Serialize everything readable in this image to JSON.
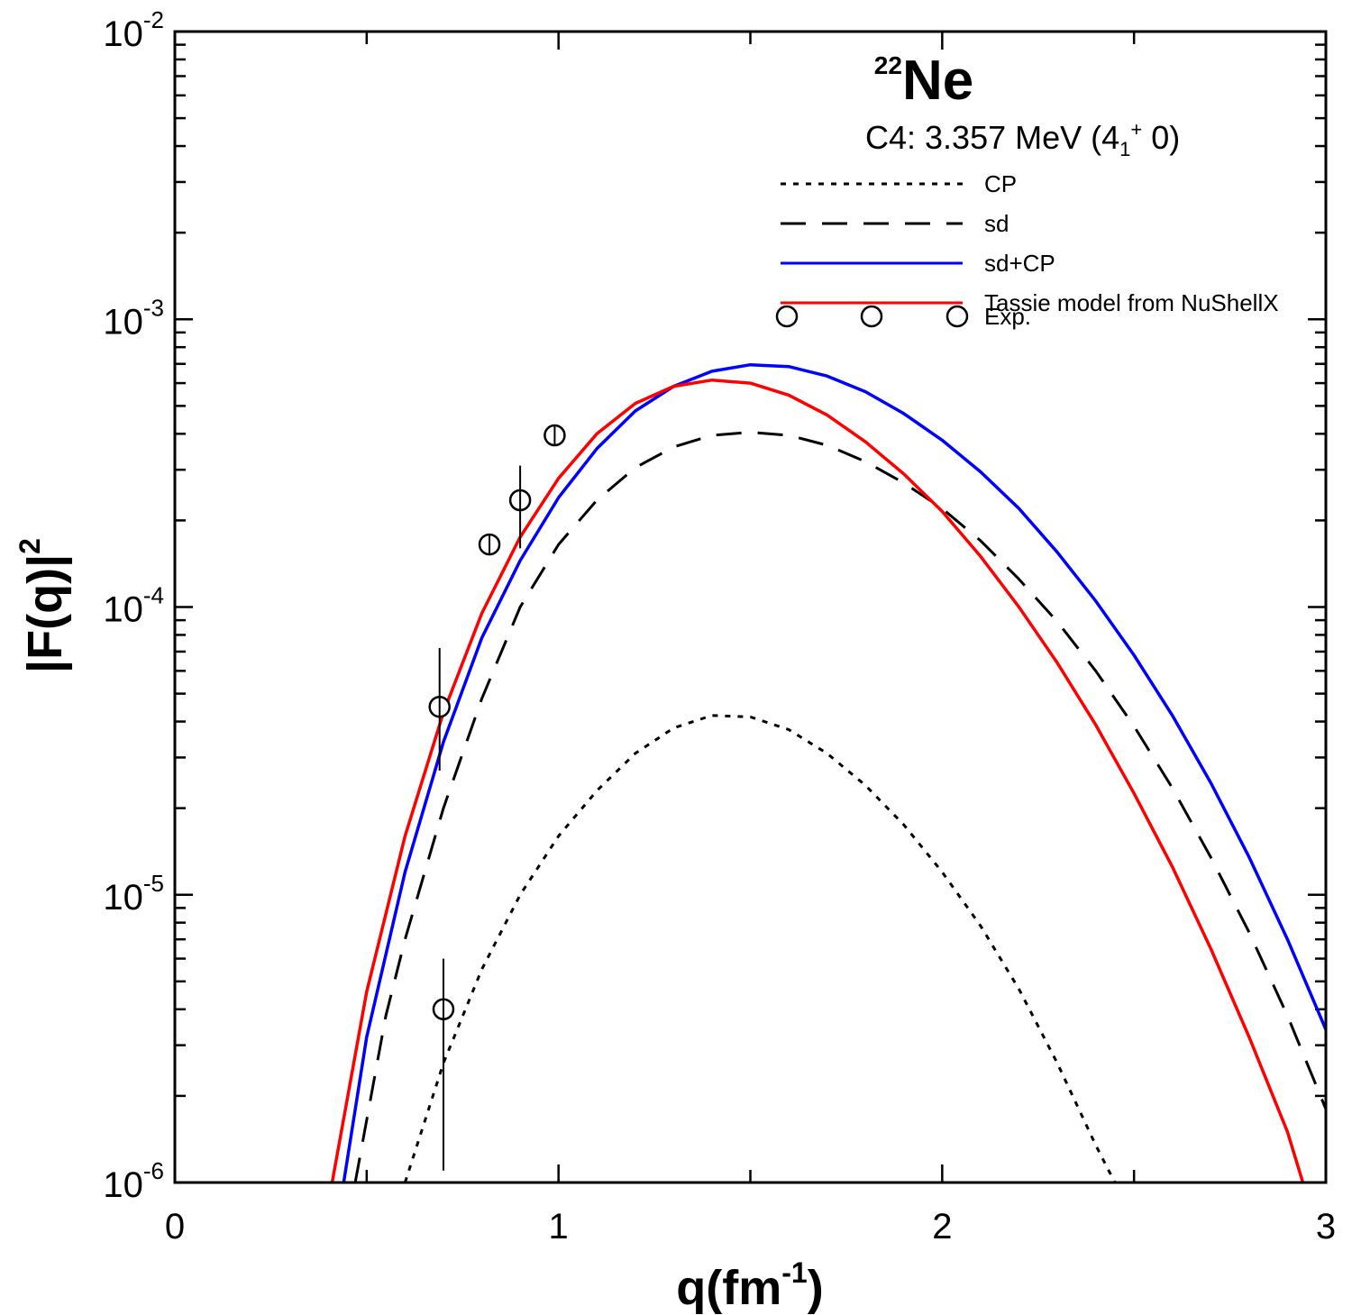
{
  "chart_data": {
    "type": "line",
    "title": {
      "mass_number": "22",
      "element": "Ne"
    },
    "subtitle": {
      "prefix": "C4:  3.357 MeV (4",
      "sub": "1",
      "sup": "+",
      "suffix": " 0)"
    },
    "xlabel": {
      "main": "q(fm",
      "sup": "-1",
      "close": ")"
    },
    "ylabel": {
      "main": "|F(q)|",
      "sup": "2"
    },
    "xlim": [
      0,
      3
    ],
    "ylim": [
      1e-06,
      0.01
    ],
    "yscale": "log",
    "x_ticks": [
      {
        "value": 0,
        "label": "0"
      },
      {
        "value": 1,
        "label": "1"
      },
      {
        "value": 2,
        "label": "2"
      },
      {
        "value": 3,
        "label": "3"
      }
    ],
    "y_ticks": [
      {
        "exp": -2,
        "base": "10",
        "sup": "-2"
      },
      {
        "exp": -3,
        "base": "10",
        "sup": "-3"
      },
      {
        "exp": -4,
        "base": "10",
        "sup": "-4"
      },
      {
        "exp": -5,
        "base": "10",
        "sup": "-5"
      },
      {
        "exp": -6,
        "base": "10",
        "sup": "-6"
      }
    ],
    "legend_position": "top-right",
    "series": [
      {
        "name": "CP",
        "style": "dotted",
        "color": "#000000",
        "points": [
          [
            0.6,
            1e-06
          ],
          [
            0.7,
            2.6e-06
          ],
          [
            0.8,
            5.5e-06
          ],
          [
            0.9,
            1e-05
          ],
          [
            1.0,
            1.6e-05
          ],
          [
            1.1,
            2.3e-05
          ],
          [
            1.2,
            3.1e-05
          ],
          [
            1.3,
            3.8e-05
          ],
          [
            1.4,
            4.2e-05
          ],
          [
            1.5,
            4.15e-05
          ],
          [
            1.6,
            3.75e-05
          ],
          [
            1.7,
            3.1e-05
          ],
          [
            1.8,
            2.4e-05
          ],
          [
            1.9,
            1.75e-05
          ],
          [
            2.0,
            1.2e-05
          ],
          [
            2.1,
            7.8e-06
          ],
          [
            2.2,
            4.7e-06
          ],
          [
            2.3,
            2.6e-06
          ],
          [
            2.4,
            1.35e-06
          ],
          [
            2.45,
            1e-06
          ]
        ]
      },
      {
        "name": "sd",
        "style": "dashed",
        "color": "#000000",
        "points": [
          [
            0.47,
            1e-06
          ],
          [
            0.55,
            3.8e-06
          ],
          [
            0.6,
            7e-06
          ],
          [
            0.7,
            2e-05
          ],
          [
            0.8,
            4.8e-05
          ],
          [
            0.9,
            0.0001
          ],
          [
            1.0,
            0.000165
          ],
          [
            1.1,
            0.000235
          ],
          [
            1.2,
            0.000305
          ],
          [
            1.3,
            0.00036
          ],
          [
            1.4,
            0.000395
          ],
          [
            1.5,
            0.000405
          ],
          [
            1.6,
            0.000395
          ],
          [
            1.7,
            0.000365
          ],
          [
            1.8,
            0.00032
          ],
          [
            1.9,
            0.00027
          ],
          [
            2.0,
            0.00022
          ],
          [
            2.1,
            0.00017
          ],
          [
            2.2,
            0.000125
          ],
          [
            2.3,
            8.9e-05
          ],
          [
            2.4,
            6e-05
          ],
          [
            2.5,
            3.85e-05
          ],
          [
            2.6,
            2.35e-05
          ],
          [
            2.7,
            1.35e-05
          ],
          [
            2.8,
            7.4e-06
          ],
          [
            2.9,
            3.8e-06
          ],
          [
            3.0,
            1.8e-06
          ]
        ]
      },
      {
        "name": "sd+CP",
        "style": "solid",
        "color": "#0000ff",
        "points": [
          [
            0.44,
            1e-06
          ],
          [
            0.5,
            3.2e-06
          ],
          [
            0.6,
            1.2e-05
          ],
          [
            0.7,
            3.4e-05
          ],
          [
            0.8,
            7.8e-05
          ],
          [
            0.9,
            0.000145
          ],
          [
            1.0,
            0.00024
          ],
          [
            1.1,
            0.000355
          ],
          [
            1.2,
            0.00048
          ],
          [
            1.3,
            0.000585
          ],
          [
            1.4,
            0.00066
          ],
          [
            1.5,
            0.000695
          ],
          [
            1.6,
            0.000685
          ],
          [
            1.7,
            0.000635
          ],
          [
            1.8,
            0.00056
          ],
          [
            1.9,
            0.00047
          ],
          [
            2.0,
            0.00038
          ],
          [
            2.1,
            0.000295
          ],
          [
            2.2,
            0.00022
          ],
          [
            2.3,
            0.000155
          ],
          [
            2.4,
            0.000105
          ],
          [
            2.5,
            6.8e-05
          ],
          [
            2.6,
            4.2e-05
          ],
          [
            2.7,
            2.45e-05
          ],
          [
            2.8,
            1.35e-05
          ],
          [
            2.9,
            7e-06
          ],
          [
            3.0,
            3.4e-06
          ]
        ]
      },
      {
        "name": "Tassie model from NuShellX",
        "style": "solid",
        "color": "#ff0000",
        "points": [
          [
            0.41,
            1e-06
          ],
          [
            0.5,
            4.6e-06
          ],
          [
            0.6,
            1.6e-05
          ],
          [
            0.7,
            4.3e-05
          ],
          [
            0.8,
            9.5e-05
          ],
          [
            0.9,
            0.000175
          ],
          [
            1.0,
            0.00028
          ],
          [
            1.1,
            0.0004
          ],
          [
            1.2,
            0.00051
          ],
          [
            1.3,
            0.000585
          ],
          [
            1.4,
            0.000615
          ],
          [
            1.5,
            0.0006
          ],
          [
            1.6,
            0.000545
          ],
          [
            1.7,
            0.000465
          ],
          [
            1.8,
            0.000375
          ],
          [
            1.9,
            0.00029
          ],
          [
            2.0,
            0.000215
          ],
          [
            2.1,
            0.00015
          ],
          [
            2.2,
            0.0001
          ],
          [
            2.3,
            6.4e-05
          ],
          [
            2.4,
            3.9e-05
          ],
          [
            2.5,
            2.25e-05
          ],
          [
            2.6,
            1.25e-05
          ],
          [
            2.7,
            6.5e-06
          ],
          [
            2.8,
            3.2e-06
          ],
          [
            2.9,
            1.5e-06
          ],
          [
            2.94,
            1e-06
          ]
        ]
      },
      {
        "name": "Exp.",
        "style": "markers",
        "color": "#000000",
        "points": [
          [
            0.69,
            4.5e-05
          ],
          [
            0.7,
            4e-06
          ],
          [
            0.82,
            0.000165
          ],
          [
            0.9,
            0.000235
          ],
          [
            0.99,
            0.000395
          ]
        ],
        "errors": [
          [
            2.7e-05,
            7.2e-05
          ],
          [
            1.1e-06,
            6e-06
          ],
          [
            0.000155,
            0.000175
          ],
          [
            0.00016,
            0.00031
          ],
          [
            0.00037,
            0.00042
          ]
        ]
      }
    ]
  }
}
